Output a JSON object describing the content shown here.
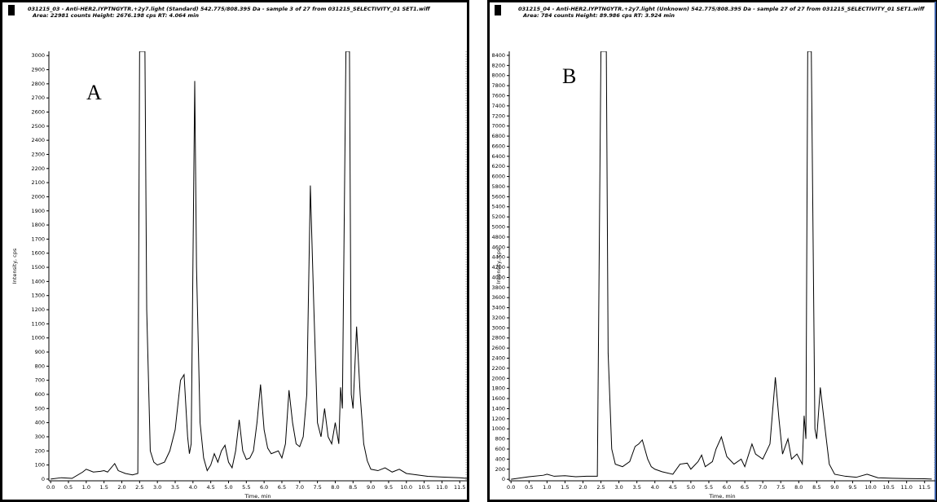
{
  "chart_data": [
    {
      "type": "line",
      "label": "A",
      "title": "031215_03 - Anti-HER2.IYPTNGYTR.+2y7.light (Standard) 542.775/808.395 Da - sample 3 of 27 from 031215_SELECTIVITY_01 SET1.wiff",
      "subtitle": "Area: 22981 counts  Height: 2676.198 cps  RT: 4.064 min",
      "x_label": "Time, min",
      "y_label": "Intensity, cps",
      "color": "#000000",
      "xlim": [
        -0.05,
        11.7
      ],
      "ylim": [
        -12,
        3030
      ],
      "xticks": [
        {
          "value": 0,
          "label": "0.0"
        },
        0.5,
        {
          "value": 1,
          "label": "1.0"
        },
        1.5,
        {
          "value": 2,
          "label": "2.0"
        },
        2.5,
        {
          "value": 3,
          "label": "3.0"
        },
        3.5,
        {
          "value": 4,
          "label": "4.0"
        },
        4.5,
        {
          "value": 5,
          "label": "5.0"
        },
        5.5,
        {
          "value": 6,
          "label": "6.0"
        },
        6.5,
        {
          "value": 7,
          "label": "7.0"
        },
        7.5,
        {
          "value": 8,
          "label": "8.0"
        },
        8.5,
        {
          "value": 9,
          "label": "9.0"
        },
        9.5,
        {
          "value": 10,
          "label": "10.0"
        },
        10.5,
        {
          "value": 11,
          "label": "11.0"
        },
        11.5
      ],
      "yticks": [
        0,
        100,
        200,
        300,
        400,
        500,
        600,
        700,
        800,
        900,
        1000,
        1100,
        1200,
        1300,
        1400,
        1500,
        1600,
        1700,
        1800,
        1900,
        2000,
        2100,
        2200,
        2300,
        2400,
        2500,
        2600,
        2700,
        2800,
        2900,
        3000
      ],
      "x": [
        0,
        0.3,
        0.6,
        0.9,
        1.0,
        1.2,
        1.4,
        1.5,
        1.6,
        1.8,
        1.9,
        2.1,
        2.3,
        2.45,
        2.5,
        2.65,
        2.7,
        2.8,
        2.9,
        3.0,
        3.2,
        3.35,
        3.5,
        3.65,
        3.75,
        3.85,
        3.9,
        3.95,
        4.05,
        4.1,
        4.2,
        4.3,
        4.4,
        4.5,
        4.6,
        4.7,
        4.8,
        4.9,
        5.0,
        5.1,
        5.2,
        5.3,
        5.4,
        5.5,
        5.6,
        5.7,
        5.8,
        5.9,
        6.0,
        6.1,
        6.2,
        6.4,
        6.5,
        6.6,
        6.7,
        6.8,
        6.9,
        7.0,
        7.1,
        7.2,
        7.3,
        7.4,
        7.5,
        7.6,
        7.7,
        7.8,
        7.9,
        8.0,
        8.1,
        8.15,
        8.2,
        8.3,
        8.4,
        8.45,
        8.5,
        8.6,
        8.7,
        8.8,
        8.9,
        9.0,
        9.2,
        9.4,
        9.6,
        9.8,
        10.0,
        10.3,
        10.6,
        11.0,
        11.5,
        11.7
      ],
      "values": [
        0,
        10,
        5,
        50,
        70,
        50,
        55,
        60,
        50,
        110,
        60,
        40,
        30,
        40,
        3030,
        3030,
        1200,
        200,
        120,
        100,
        120,
        200,
        350,
        700,
        740,
        300,
        180,
        250,
        2820,
        1500,
        400,
        150,
        60,
        100,
        180,
        120,
        200,
        240,
        120,
        80,
        200,
        420,
        200,
        140,
        150,
        200,
        400,
        670,
        350,
        220,
        180,
        200,
        150,
        250,
        630,
        400,
        250,
        230,
        300,
        600,
        2080,
        1200,
        400,
        300,
        500,
        300,
        250,
        400,
        250,
        650,
        500,
        3030,
        3030,
        600,
        500,
        1080,
        600,
        250,
        130,
        70,
        60,
        80,
        50,
        70,
        40,
        30,
        20,
        15,
        10,
        5
      ]
    },
    {
      "type": "line",
      "label": "B",
      "title": "031215_04 - Anti-HER2.IYPTNGYTR.+2y7.light (Unknown) 542.775/808.395 Da - sample 27 of 27 from 031215_SELECTIVITY_01 SET1.wiff",
      "subtitle": "Area: 784 counts  Height: 89.986 cps  RT: 3.924 min",
      "x_label": "Time, min",
      "y_label": "Intensity, cps",
      "color": "#000000",
      "xlim": [
        -0.05,
        11.8
      ],
      "ylim": [
        -30,
        8480
      ],
      "xticks": [
        {
          "value": 0,
          "label": "0.0"
        },
        0.5,
        {
          "value": 1,
          "label": "1.0"
        },
        1.5,
        {
          "value": 2,
          "label": "2.0"
        },
        2.5,
        {
          "value": 3,
          "label": "3.0"
        },
        3.5,
        {
          "value": 4,
          "label": "4.0"
        },
        4.5,
        {
          "value": 5,
          "label": "5.0"
        },
        5.5,
        {
          "value": 6,
          "label": "6.0"
        },
        6.5,
        {
          "value": 7,
          "label": "7.0"
        },
        7.5,
        {
          "value": 8,
          "label": "8.0"
        },
        8.5,
        {
          "value": 9,
          "label": "9.0"
        },
        9.5,
        {
          "value": 10,
          "label": "10.0"
        },
        10.5,
        {
          "value": 11,
          "label": "11.0"
        },
        11.5
      ],
      "yticks": [
        0,
        200,
        400,
        600,
        800,
        1000,
        1200,
        1400,
        1600,
        1800,
        2000,
        2200,
        2400,
        2600,
        2800,
        3000,
        3200,
        3400,
        3600,
        3800,
        4000,
        4200,
        4400,
        4600,
        4800,
        5000,
        5200,
        5400,
        5600,
        5800,
        6000,
        6200,
        6400,
        6600,
        6800,
        7000,
        7200,
        7400,
        7600,
        7800,
        8000,
        8200,
        8400
      ],
      "x": [
        0,
        0.5,
        0.9,
        1.0,
        1.2,
        1.5,
        1.8,
        2.1,
        2.4,
        2.5,
        2.65,
        2.7,
        2.8,
        2.9,
        3.1,
        3.3,
        3.45,
        3.55,
        3.65,
        3.8,
        3.9,
        4.0,
        4.2,
        4.5,
        4.7,
        4.9,
        5.0,
        5.2,
        5.3,
        5.4,
        5.6,
        5.7,
        5.85,
        6.0,
        6.2,
        6.4,
        6.5,
        6.7,
        6.8,
        7.0,
        7.2,
        7.35,
        7.45,
        7.55,
        7.7,
        7.8,
        7.95,
        8.1,
        8.15,
        8.2,
        8.25,
        8.35,
        8.45,
        8.5,
        8.6,
        8.7,
        8.85,
        9.0,
        9.3,
        9.6,
        9.9,
        10.2,
        10.6,
        11.0,
        11.5,
        11.7
      ],
      "values": [
        0,
        50,
        80,
        100,
        60,
        70,
        50,
        60,
        60,
        8480,
        8480,
        2500,
        600,
        300,
        250,
        350,
        650,
        700,
        780,
        400,
        250,
        200,
        150,
        100,
        300,
        320,
        200,
        350,
        480,
        250,
        350,
        600,
        840,
        450,
        300,
        400,
        250,
        700,
        500,
        400,
        700,
        2020,
        1200,
        500,
        800,
        400,
        500,
        300,
        1260,
        800,
        8480,
        8480,
        1000,
        800,
        1820,
        1200,
        300,
        100,
        60,
        40,
        100,
        30,
        20,
        15,
        10,
        5
      ]
    }
  ]
}
